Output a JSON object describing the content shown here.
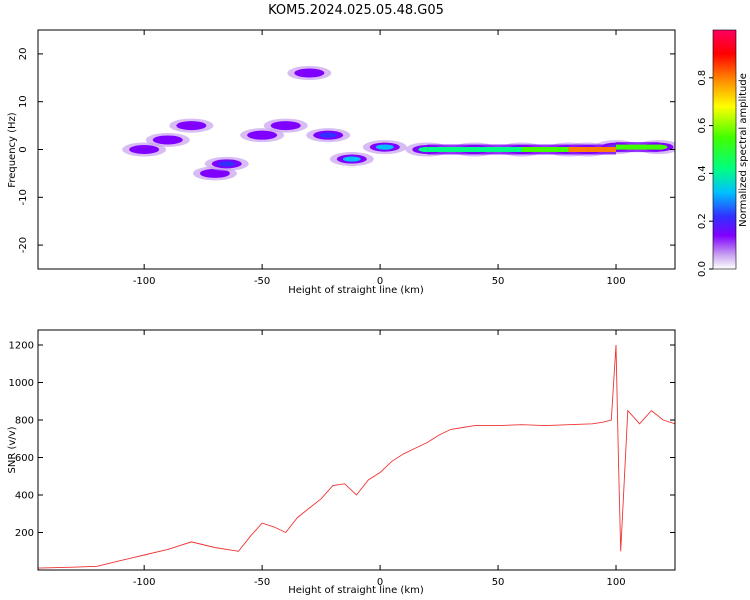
{
  "title": "KOM5.2024.025.05.48.G05",
  "chart_data": [
    {
      "type": "heatmap",
      "xlabel": "Height of straight line (km)",
      "ylabel": "Frequency (Hz)",
      "xlim": [
        -145,
        125
      ],
      "ylim": [
        -25,
        25
      ],
      "xticks": [
        -100,
        -50,
        0,
        50,
        100
      ],
      "yticks": [
        -20,
        -10,
        0,
        10,
        20
      ],
      "colorbar": {
        "label": "Normalized spectral amplitude",
        "range": [
          0,
          1
        ],
        "ticks": [
          0.0,
          0.2,
          0.4,
          0.6,
          0.8
        ],
        "tick_labels": [
          "0.0",
          "0.2",
          "0.4",
          "0.6",
          "0.8"
        ],
        "colors": [
          "#ffffff",
          "#c8a0f0",
          "#8000ff",
          "#3030ff",
          "#00c0ff",
          "#00ff80",
          "#40ff00",
          "#ffff00",
          "#ff8000",
          "#ff0000",
          "#ff0060"
        ]
      },
      "features": [
        {
          "x": -100,
          "y": 0,
          "amplitude": 0.15
        },
        {
          "x": -90,
          "y": 2,
          "amplitude": 0.2
        },
        {
          "x": -80,
          "y": 5,
          "amplitude": 0.15
        },
        {
          "x": -70,
          "y": -5,
          "amplitude": 0.2
        },
        {
          "x": -65,
          "y": -3,
          "amplitude": 0.3
        },
        {
          "x": -50,
          "y": 3,
          "amplitude": 0.2
        },
        {
          "x": -40,
          "y": 5,
          "amplitude": 0.15
        },
        {
          "x": -30,
          "y": 16,
          "amplitude": 0.15
        },
        {
          "x": -22,
          "y": 3,
          "amplitude": 0.3
        },
        {
          "x": -12,
          "y": -2,
          "amplitude": 0.35
        },
        {
          "x": 2,
          "y": 0.5,
          "amplitude": 0.4
        },
        {
          "x": 20,
          "y": 0,
          "amplitude": 0.5
        },
        {
          "x": 40,
          "y": 0,
          "amplitude": 0.45
        },
        {
          "x": 60,
          "y": 0,
          "amplitude": 0.45
        },
        {
          "x": 80,
          "y": 0,
          "amplitude": 0.55
        },
        {
          "x": 88,
          "y": 0,
          "amplitude": 0.85
        },
        {
          "x": 100,
          "y": 0.5,
          "amplitude": 0.5
        },
        {
          "x": 118,
          "y": 0.5,
          "amplitude": 0.6
        }
      ]
    },
    {
      "type": "line",
      "xlabel": "Height of straight line (km)",
      "ylabel": "SNR (v/v)",
      "xlim": [
        -145,
        125
      ],
      "ylim": [
        0,
        1280
      ],
      "xticks": [
        -100,
        -50,
        0,
        50,
        100
      ],
      "yticks": [
        200,
        400,
        600,
        800,
        1000,
        1200
      ],
      "line_color": "#ee3333",
      "series": [
        {
          "x": [
            -145,
            -130,
            -120,
            -110,
            -100,
            -90,
            -80,
            -70,
            -60,
            -55,
            -50,
            -45,
            -40,
            -35,
            -30,
            -25,
            -20,
            -15,
            -10,
            -5,
            0,
            5,
            10,
            15,
            20,
            25,
            30,
            35,
            40,
            50,
            60,
            70,
            80,
            90,
            95,
            98,
            100,
            101,
            102,
            105,
            110,
            115,
            120,
            125
          ],
          "y": [
            10,
            15,
            20,
            50,
            80,
            110,
            150,
            120,
            100,
            180,
            250,
            230,
            200,
            280,
            330,
            380,
            450,
            460,
            400,
            480,
            520,
            580,
            620,
            650,
            680,
            720,
            750,
            760,
            770,
            770,
            775,
            770,
            775,
            780,
            790,
            800,
            1200,
            600,
            100,
            850,
            780,
            850,
            800,
            780
          ]
        }
      ]
    }
  ]
}
